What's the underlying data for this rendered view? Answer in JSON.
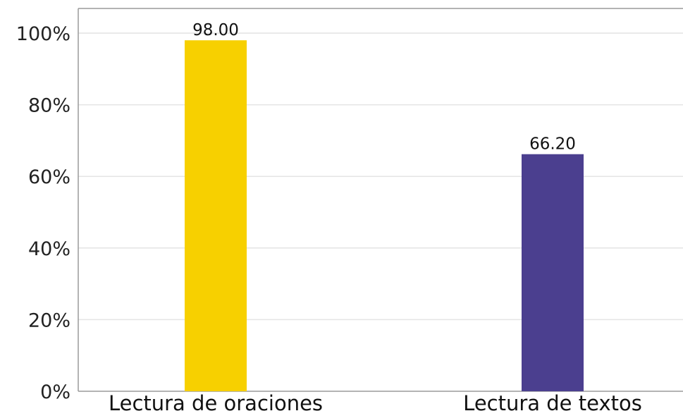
{
  "chart_data": {
    "type": "bar",
    "categories": [
      "Lectura de oraciones",
      "Lectura de textos"
    ],
    "values": [
      98.0,
      66.2
    ],
    "data_labels": [
      "98.00",
      "66.20"
    ],
    "colors": [
      "#f7d000",
      "#4b3f8f"
    ],
    "title": "",
    "xlabel": "",
    "ylabel": "",
    "ylim": [
      0,
      100
    ],
    "yticks": [
      0,
      20,
      40,
      60,
      80,
      100
    ],
    "ytick_labels": [
      "0%",
      "20%",
      "40%",
      "60%",
      "80%",
      "100%"
    ],
    "grid": true,
    "legend": "none"
  }
}
